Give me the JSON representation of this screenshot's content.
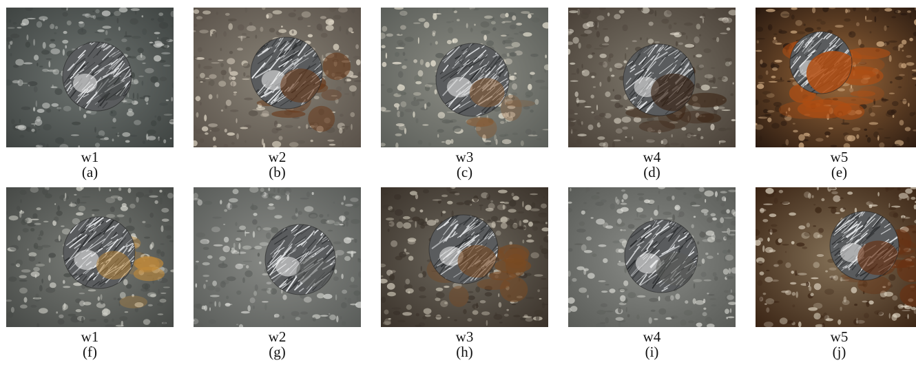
{
  "panels": [
    {
      "sample": "w1",
      "label": "(a)",
      "rock": "#6f7572",
      "rock2": "#3f4442",
      "speck": "#c9cbc7",
      "stain": "none",
      "scar": 0.2
    },
    {
      "sample": "w2",
      "label": "(b)",
      "rock": "#8a8478",
      "rock2": "#5a524a",
      "speck": "#e6ddcc",
      "stain": "#6a3a1a",
      "scar": 0.45
    },
    {
      "sample": "w3",
      "label": "(c)",
      "rock": "#8d8e86",
      "rock2": "#5c5f5a",
      "speck": "#ece6d6",
      "stain": "#8a5a30",
      "scar": 0.3
    },
    {
      "sample": "w4",
      "label": "(d)",
      "rock": "#7e786c",
      "rock2": "#4a4138",
      "speck": "#d8d2c4",
      "stain": "#3b2414",
      "scar": 0.55
    },
    {
      "sample": "w5",
      "label": "(e)",
      "rock": "#9c6a3c",
      "rock2": "#2a1a10",
      "speck": "#d9b48a",
      "stain": "#b24e12",
      "scar": 0.95
    },
    {
      "sample": "w1",
      "label": "(f)",
      "rock": "#7a7d78",
      "rock2": "#474a47",
      "speck": "#d4d4cc",
      "stain": "#c08a3a",
      "scar": 0.3
    },
    {
      "sample": "w2",
      "label": "(g)",
      "rock": "#8a8c88",
      "rock2": "#5a5d5a",
      "speck": "#d6d7d2",
      "stain": "none",
      "scar": 0.35
    },
    {
      "sample": "w3",
      "label": "(h)",
      "rock": "#6f6a60",
      "rock2": "#3a322a",
      "speck": "#cfc8b8",
      "stain": "#7a4a22",
      "scar": 0.45
    },
    {
      "sample": "w4",
      "label": "(i)",
      "rock": "#8c8e8a",
      "rock2": "#5a5c58",
      "speck": "#dcdcd6",
      "stain": "none",
      "scar": 0.4
    },
    {
      "sample": "w5",
      "label": "(j)",
      "rock": "#857258",
      "rock2": "#3a2414",
      "speck": "#e0d6c4",
      "stain": "#6a3010",
      "scar": 0.5
    }
  ]
}
